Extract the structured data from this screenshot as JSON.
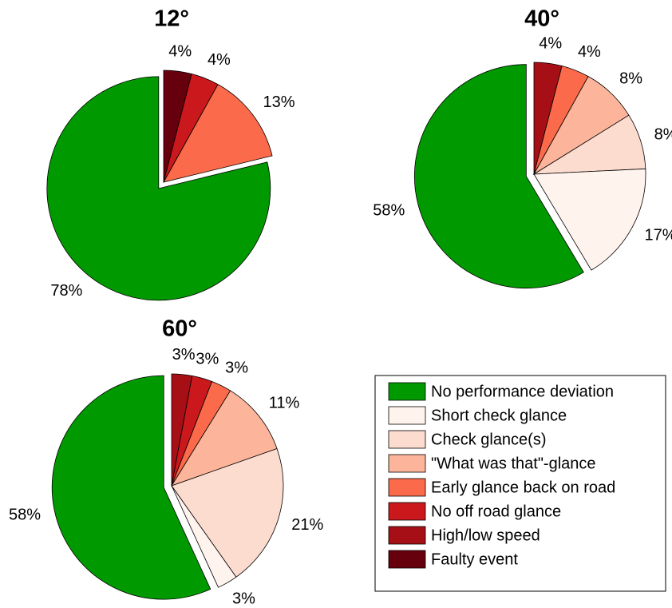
{
  "chart_data": [
    {
      "type": "pie",
      "title": "12°",
      "values": [
        78,
        null,
        null,
        null,
        13,
        4,
        null,
        4
      ],
      "value_labels": [
        "78%",
        null,
        null,
        null,
        "13%",
        "4%",
        null,
        "4%"
      ]
    },
    {
      "type": "pie",
      "title": "40°",
      "values": [
        58,
        17,
        8,
        8,
        4,
        null,
        4,
        null
      ],
      "value_labels": [
        "58%",
        "17%",
        "8%",
        "8%",
        "4%",
        null,
        "4%",
        null
      ]
    },
    {
      "type": "pie",
      "title": "60°",
      "values": [
        58,
        3,
        21,
        11,
        3,
        3,
        3,
        null
      ],
      "value_labels": [
        "58%",
        "3%",
        "21%",
        "11%",
        "3%",
        "3%",
        "3%",
        null
      ]
    }
  ],
  "legend": [
    {
      "name": "No performance deviation",
      "color": "#009900"
    },
    {
      "name": "Short check glance",
      "color": "#fff3ee"
    },
    {
      "name": "Check glance(s)",
      "color": "#fddcd0"
    },
    {
      "name": "\"What was that\"-glance",
      "color": "#fcb49a"
    },
    {
      "name": "Early glance back on road",
      "color": "#fb6a4a"
    },
    {
      "name": "No off road glance",
      "color": "#cb181d"
    },
    {
      "name": "High/low speed",
      "color": "#a50f15"
    },
    {
      "name": "Faulty event",
      "color": "#67000d"
    }
  ]
}
